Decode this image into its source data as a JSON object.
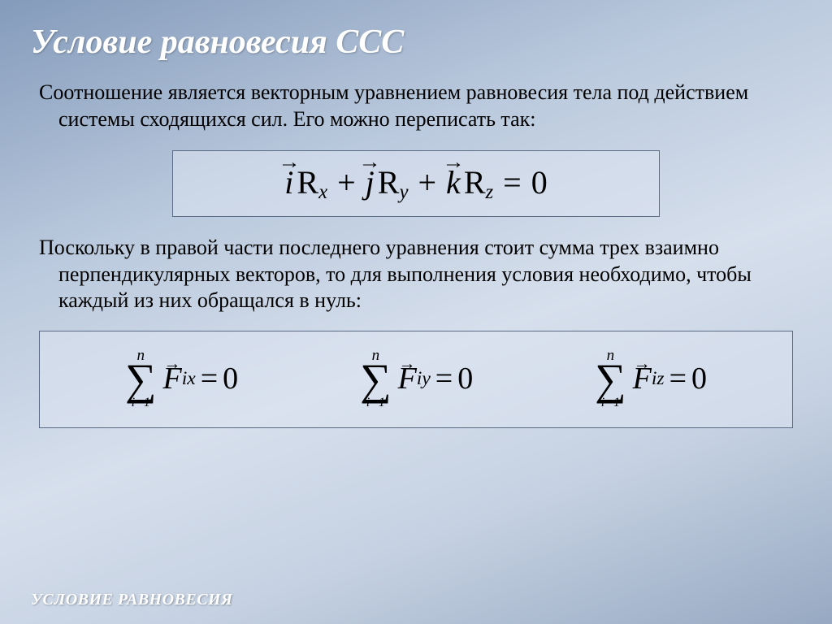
{
  "slide": {
    "title": "Условие равновесия ССС",
    "paragraph1": "Соотношение является векторным уравнением равновесия тела под действием системы сходящихся сил. Его можно переписать так:",
    "paragraph2": "Поскольку в правой части последнего уравнения стоит сумма трех взаимно перпендикулярных векторов, то для выполнения условия  необходимо, чтобы каждый из них обращался в нуль:",
    "footer": "УСЛОВИЕ РАВНОВЕСИЯ"
  },
  "equation_main": {
    "terms": [
      {
        "vec": "i",
        "coef": "R",
        "sub": "x"
      },
      {
        "vec": "j",
        "coef": "R",
        "sub": "y"
      },
      {
        "vec": "k",
        "coef": "R",
        "sub": "z"
      }
    ],
    "rhs": "0",
    "box_border": "#5a6a85",
    "box_bg": "rgba(220,228,240,0.55)",
    "fontsize": 40
  },
  "equation_sums": {
    "upper": "n",
    "lower": "i=1",
    "force": "F",
    "subs": [
      "ix",
      "iy",
      "iz"
    ],
    "rhs": "0",
    "box_border": "#5a6a85",
    "fontsize": 38
  },
  "style": {
    "bg_gradient": [
      "#849bbb",
      "#bac9dd",
      "#d6dfec",
      "#c5d1e2",
      "#97a9c2"
    ],
    "title_color": "#ffffff",
    "title_fontsize": 42,
    "body_color": "#000000",
    "body_fontsize": 26,
    "footer_color": "#ffffff",
    "footer_fontsize": 20,
    "font_family": "Times New Roman"
  }
}
